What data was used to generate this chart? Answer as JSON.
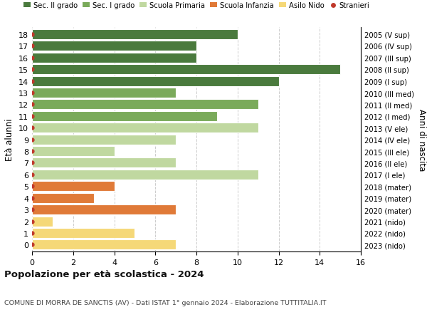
{
  "ages": [
    18,
    17,
    16,
    15,
    14,
    13,
    12,
    11,
    10,
    9,
    8,
    7,
    6,
    5,
    4,
    3,
    2,
    1,
    0
  ],
  "right_labels": [
    "2005 (V sup)",
    "2006 (IV sup)",
    "2007 (III sup)",
    "2008 (II sup)",
    "2009 (I sup)",
    "2010 (III med)",
    "2011 (II med)",
    "2012 (I med)",
    "2013 (V ele)",
    "2014 (IV ele)",
    "2015 (III ele)",
    "2016 (II ele)",
    "2017 (I ele)",
    "2018 (mater)",
    "2019 (mater)",
    "2020 (mater)",
    "2021 (nido)",
    "2022 (nido)",
    "2023 (nido)"
  ],
  "bar_values": [
    10,
    8,
    8,
    15,
    12,
    7,
    11,
    9,
    11,
    7,
    4,
    7,
    11,
    4,
    3,
    7,
    1,
    5,
    7
  ],
  "bar_colors": [
    "#4a7a3d",
    "#4a7a3d",
    "#4a7a3d",
    "#4a7a3d",
    "#4a7a3d",
    "#7aaa5a",
    "#7aaa5a",
    "#7aaa5a",
    "#c0d8a0",
    "#c0d8a0",
    "#c0d8a0",
    "#c0d8a0",
    "#c0d8a0",
    "#e07a38",
    "#e07a38",
    "#e07a38",
    "#f5d878",
    "#f5d878",
    "#f5d878"
  ],
  "legend_labels": [
    "Sec. II grado",
    "Sec. I grado",
    "Scuola Primaria",
    "Scuola Infanzia",
    "Asilo Nido",
    "Stranieri"
  ],
  "legend_colors": [
    "#4a7a3d",
    "#7aaa5a",
    "#c0d8a0",
    "#e07a38",
    "#f5d878",
    "#c0392b"
  ],
  "ylabel_left": "Età alunni",
  "ylabel_right": "Anni di nascita",
  "title": "Popolazione per età scolastica - 2024",
  "subtitle": "COMUNE DI MORRA DE SANCTIS (AV) - Dati ISTAT 1° gennaio 2024 - Elaborazione TUTTITALIA.IT",
  "xlim": [
    0,
    16
  ],
  "xticks": [
    0,
    2,
    4,
    6,
    8,
    10,
    12,
    14,
    16
  ],
  "grid_color": "#cccccc",
  "dot_color": "#c0392b",
  "bar_edge_color": "white",
  "bar_linewidth": 0.8,
  "bar_height": 0.85
}
